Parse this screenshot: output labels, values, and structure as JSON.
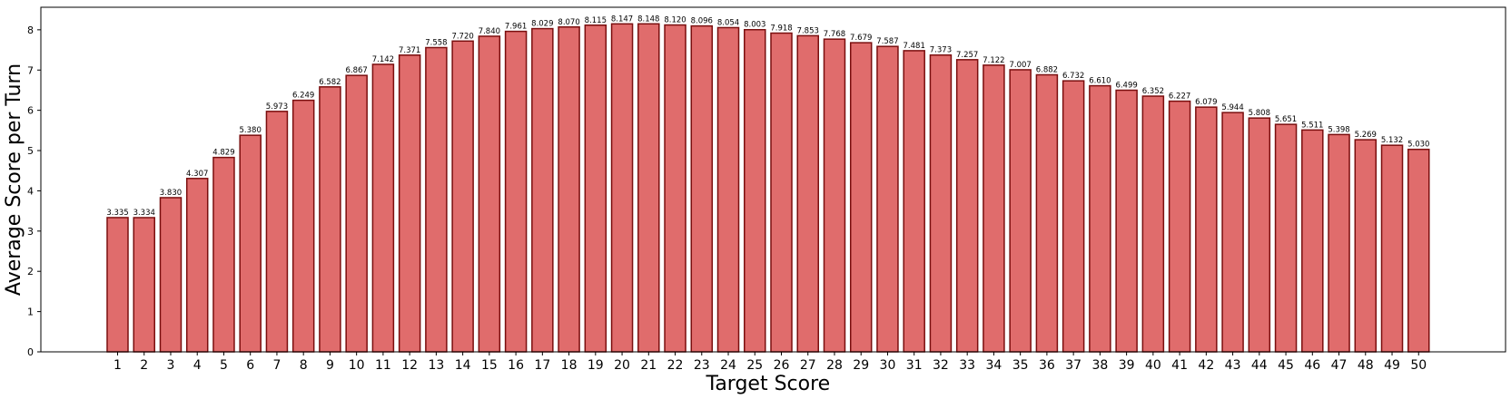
{
  "chart_data": {
    "type": "bar",
    "title": "",
    "xlabel": "Target Score",
    "ylabel": "Average Score per Turn",
    "ylim": [
      0,
      8.56
    ],
    "yticks": [
      0,
      1,
      2,
      3,
      4,
      5,
      6,
      7,
      8
    ],
    "grid": false,
    "colors": {
      "bar_fill": "#e06c6c",
      "bar_edge": "#7a0e0e"
    },
    "categories": [
      "1",
      "2",
      "3",
      "4",
      "5",
      "6",
      "7",
      "8",
      "9",
      "10",
      "11",
      "12",
      "13",
      "14",
      "15",
      "16",
      "17",
      "18",
      "19",
      "20",
      "21",
      "22",
      "23",
      "24",
      "25",
      "26",
      "27",
      "28",
      "29",
      "30",
      "31",
      "32",
      "33",
      "34",
      "35",
      "36",
      "37",
      "38",
      "39",
      "40",
      "41",
      "42",
      "43",
      "44",
      "45",
      "46",
      "47",
      "48",
      "49",
      "50"
    ],
    "values": [
      3.335,
      3.334,
      3.83,
      4.307,
      4.829,
      5.38,
      5.973,
      6.249,
      6.582,
      6.867,
      7.142,
      7.371,
      7.558,
      7.72,
      7.84,
      7.961,
      8.029,
      8.07,
      8.115,
      8.147,
      8.148,
      8.12,
      8.096,
      8.054,
      8.003,
      7.918,
      7.853,
      7.768,
      7.679,
      7.587,
      7.481,
      7.373,
      7.257,
      7.122,
      7.007,
      6.882,
      6.732,
      6.61,
      6.499,
      6.352,
      6.227,
      6.079,
      5.944,
      5.808,
      5.651,
      5.511,
      5.398,
      5.269,
      5.132,
      5.03
    ],
    "value_labels": [
      "3.335",
      "3.334",
      "3.830",
      "4.307",
      "4.829",
      "5.380",
      "5.973",
      "6.249",
      "6.582",
      "6.867",
      "7.142",
      "7.371",
      "7.558",
      "7.720",
      "7.840",
      "7.961",
      "8.029",
      "8.070",
      "8.115",
      "8.147",
      "8.148",
      "8.120",
      "8.096",
      "8.054",
      "8.003",
      "7.918",
      "7.853",
      "7.768",
      "7.679",
      "7.587",
      "7.481",
      "7.373",
      "7.257",
      "7.122",
      "7.007",
      "6.882",
      "6.732",
      "6.610",
      "6.499",
      "6.352",
      "6.227",
      "6.079",
      "5.944",
      "5.808",
      "5.651",
      "5.511",
      "5.398",
      "5.269",
      "5.132",
      "5.030"
    ]
  }
}
